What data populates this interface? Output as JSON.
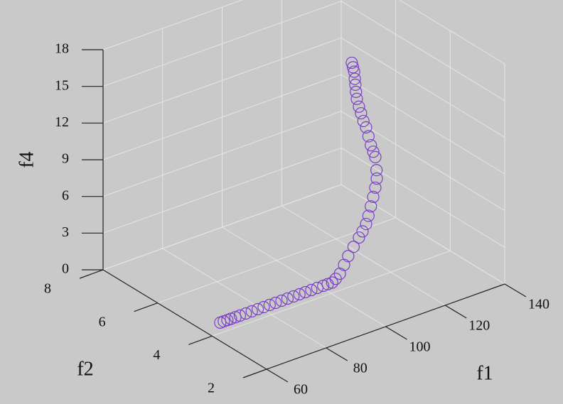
{
  "chart_data": {
    "type": "scatter3d",
    "x_label": "f1",
    "y_label": "f2",
    "z_label": "f4",
    "xlim": [
      60,
      140
    ],
    "ylim": [
      2,
      8
    ],
    "zlim": [
      0,
      18
    ],
    "xticks": [
      60,
      80,
      100,
      120,
      140
    ],
    "yticks": [
      2,
      4,
      6,
      8
    ],
    "zticks": [
      0,
      3,
      6,
      9,
      12,
      15,
      18
    ],
    "grid": true,
    "color": "#7b3fc6",
    "x": [
      66.4,
      67.6,
      68.8,
      70,
      71.5,
      73,
      75,
      77,
      79,
      81,
      83,
      85,
      87,
      89,
      91,
      93,
      95,
      97,
      99,
      101,
      102.5,
      104,
      105.2,
      106.6,
      108,
      109.4,
      111.2,
      113,
      114.2,
      115.4,
      116.2,
      117,
      117.8,
      118.5,
      119,
      118.9,
      118.5,
      117.8,
      117,
      116.2,
      115.4,
      114.5,
      113.7,
      113,
      112.3,
      112,
      111.8,
      111.6,
      111.4,
      111,
      110.6
    ],
    "y": [
      4.4,
      4.4,
      4.4,
      4.4,
      4.4,
      4.4,
      4.4,
      4.4,
      4.4,
      4.4,
      4.4,
      4.4,
      4.4,
      4.4,
      4.4,
      4.4,
      4.4,
      4.4,
      4.4,
      4.4,
      4.4,
      4.4,
      4.4,
      4.4,
      4.4,
      4.4,
      4.4,
      4.4,
      4.4,
      4.4,
      4.4,
      4.4,
      4.4,
      4.4,
      4.4,
      4.4,
      4.4,
      4.4,
      4.4,
      4.4,
      4.4,
      4.4,
      4.4,
      4.4,
      4.4,
      4.4,
      4.4,
      4.4,
      4.4,
      4.4,
      4.4
    ],
    "z": [
      0,
      0,
      0,
      0,
      0,
      0,
      0,
      0,
      0,
      0,
      0,
      0,
      0,
      0,
      0,
      0,
      0,
      0,
      0,
      0,
      0,
      0,
      0.2,
      0.5,
      1.1,
      1.7,
      2.3,
      2.9,
      3.3,
      3.8,
      4.4,
      5.1,
      5.8,
      6.5,
      7.2,
      7.9,
      9,
      9.5,
      10.1,
      10.9,
      11.7,
      12.3,
      13,
      13.6,
      14.3,
      14.9,
      15.5,
      16,
      16.6,
      17,
      17.4
    ]
  }
}
